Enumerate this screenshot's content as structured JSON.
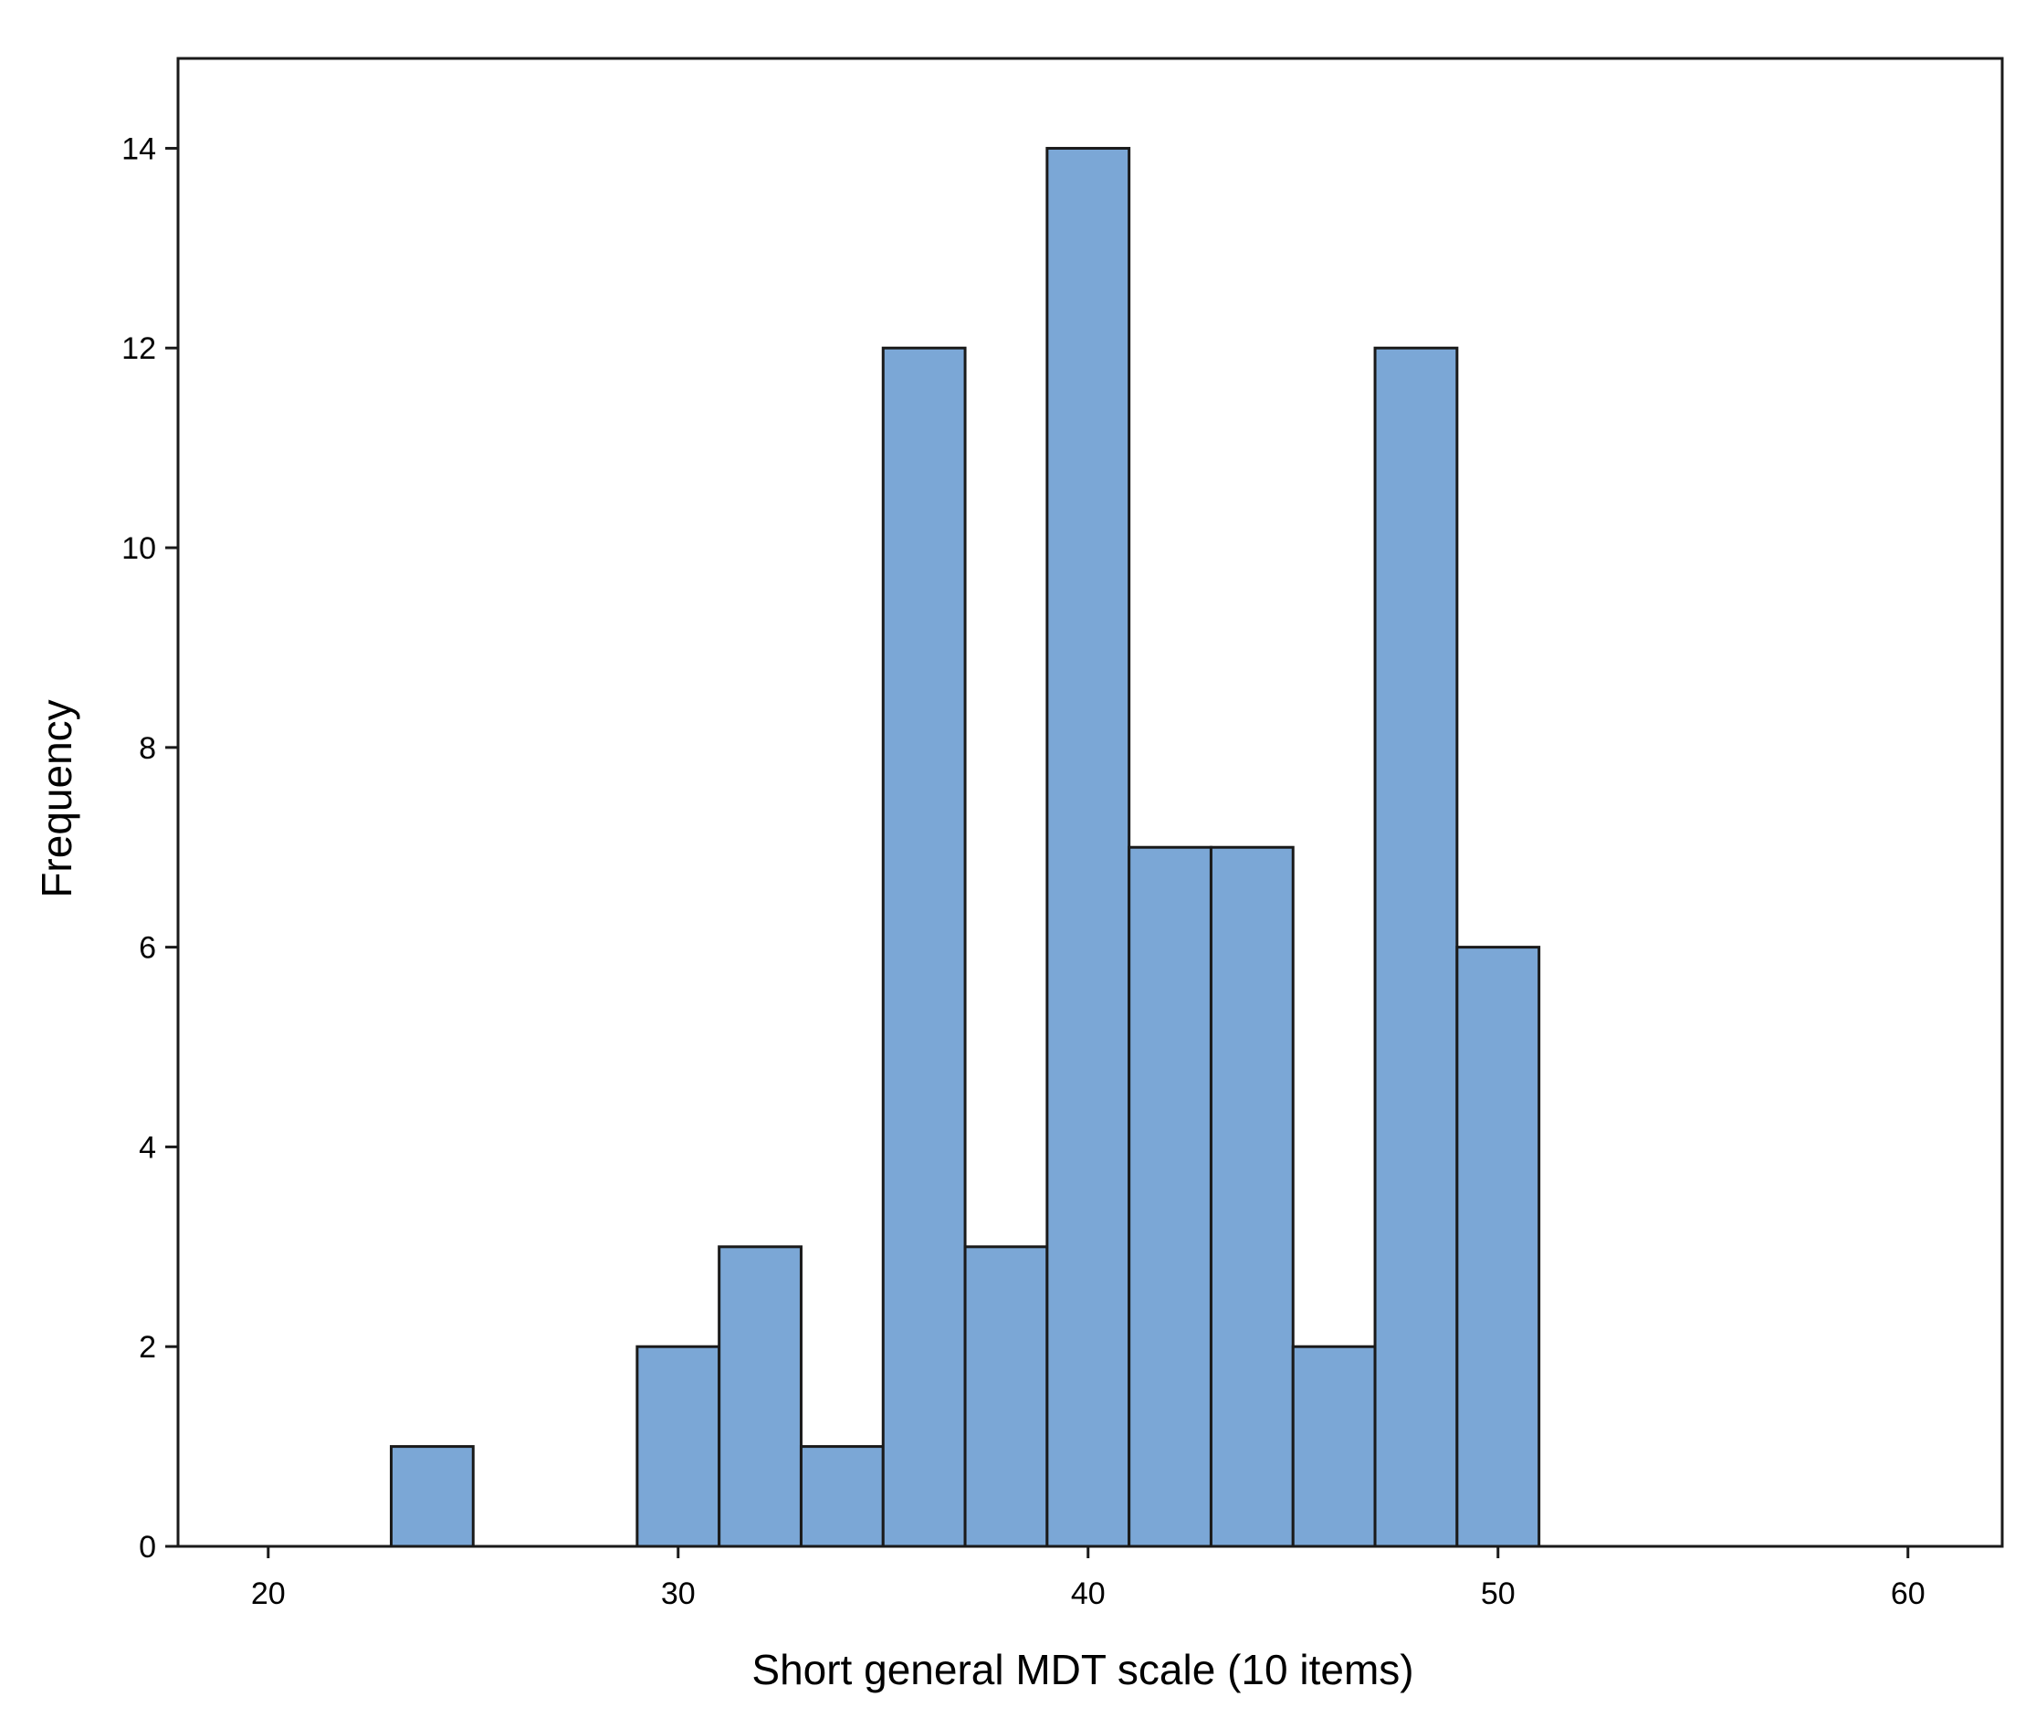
{
  "chart_data": {
    "type": "bar",
    "subtype": "histogram",
    "title": "",
    "xlabel": "Short general MDT scale (10 items)",
    "ylabel": "Frequency",
    "xlim": [
      17.8,
      62.3
    ],
    "ylim": [
      0,
      14.9
    ],
    "xticks": [
      20,
      30,
      40,
      50,
      60
    ],
    "yticks": [
      0,
      2,
      4,
      6,
      8,
      10,
      12,
      14
    ],
    "bin_width": 2,
    "bins": [
      {
        "x0": 23,
        "x1": 25,
        "count": 1
      },
      {
        "x0": 29,
        "x1": 31,
        "count": 2
      },
      {
        "x0": 31,
        "x1": 33,
        "count": 3
      },
      {
        "x0": 33,
        "x1": 35,
        "count": 1
      },
      {
        "x0": 35,
        "x1": 37,
        "count": 12
      },
      {
        "x0": 37,
        "x1": 39,
        "count": 3
      },
      {
        "x0": 39,
        "x1": 41,
        "count": 14
      },
      {
        "x0": 41,
        "x1": 43,
        "count": 7
      },
      {
        "x0": 43,
        "x1": 45,
        "count": 7
      },
      {
        "x0": 45,
        "x1": 47,
        "count": 2
      },
      {
        "x0": 47,
        "x1": 49,
        "count": 12
      },
      {
        "x0": 49,
        "x1": 51,
        "count": 6
      }
    ],
    "grid": false,
    "legend": "none",
    "colors": {
      "bar_fill": "#7BA7D6",
      "bar_stroke": "#1a1a1a",
      "axis": "#1a1a1a",
      "background": "#ffffff"
    }
  }
}
